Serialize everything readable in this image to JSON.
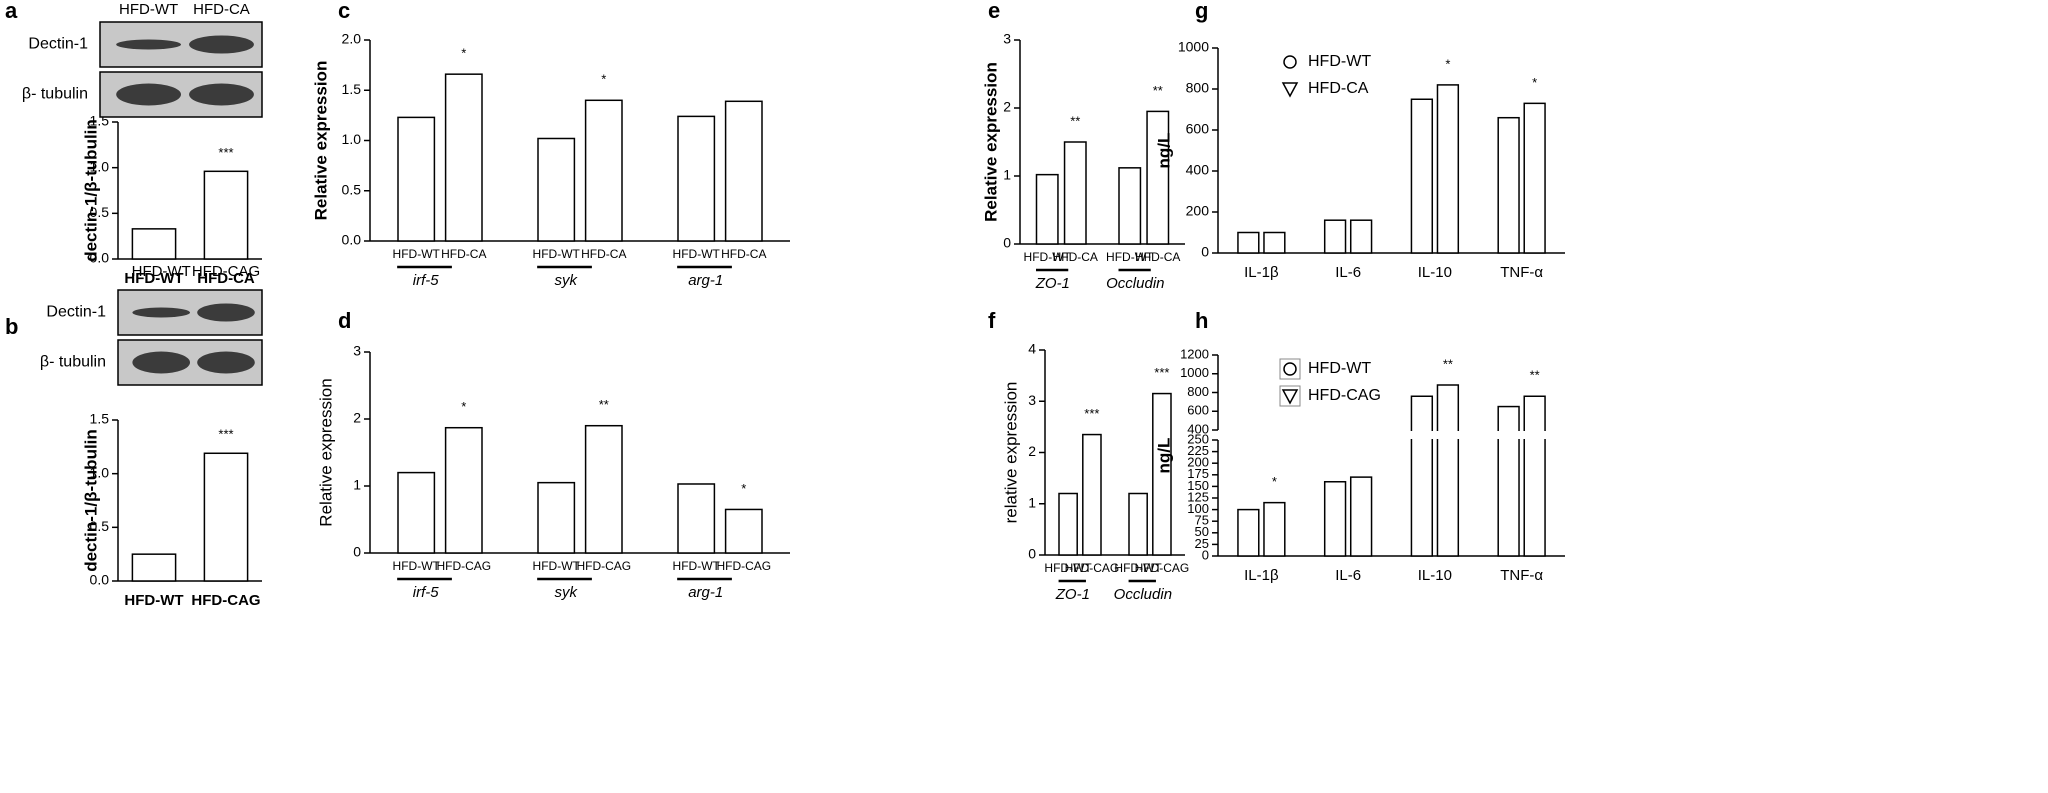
{
  "chart_data": [
    {
      "type": "bar",
      "label": "a",
      "ylabel": "dectin-1/β-tubulin",
      "blot": {
        "lanes": [
          "HFD-WT",
          "HFD-CA"
        ],
        "rows": [
          "Dectin-1",
          "β- tubulin"
        ]
      },
      "categories": [
        "HFD-WT",
        "HFD-CA"
      ],
      "values": [
        0.33,
        0.96
      ],
      "color": "#ffffff",
      "significance": [
        null,
        "***"
      ],
      "ylim": [
        0,
        1.5
      ],
      "yticks": [
        {
          "value": 0,
          "label": "0.0"
        },
        {
          "value": 0.5,
          "label": "0.5"
        },
        {
          "value": 1,
          "label": "1.0"
        },
        {
          "value": 1.5,
          "label": "1.5"
        }
      ]
    },
    {
      "type": "bar",
      "label": "b",
      "ylabel": "dectin-1/β-tubulin",
      "blot": {
        "lanes": [
          "HFD-WT",
          "HFD-CAG"
        ],
        "rows": [
          "Dectin-1",
          "β- tubulin"
        ]
      },
      "categories": [
        "HFD-WT",
        "HFD-CAG"
      ],
      "values": [
        0.25,
        1.19
      ],
      "color": "#ffffff",
      "significance": [
        null,
        "***"
      ],
      "ylim": [
        0,
        1.5
      ],
      "yticks": [
        {
          "value": 0,
          "label": "0.0"
        },
        {
          "value": 0.5,
          "label": "0.5"
        },
        {
          "value": 1,
          "label": "1.0"
        },
        {
          "value": 1.5,
          "label": "1.5"
        }
      ]
    },
    {
      "type": "grouped_bar",
      "label": "c",
      "ylabel": "Relative expression",
      "categories": [
        "irf-5",
        "syk",
        "arg-1"
      ],
      "series": [
        {
          "name": "HFD-WT",
          "color": "#ffffff",
          "values": [
            1.23,
            1.02,
            1.24
          ],
          "significance": [
            null,
            null,
            null
          ]
        },
        {
          "name": "HFD-CA",
          "color": "#ffffff",
          "values": [
            1.66,
            1.4,
            1.39
          ],
          "significance": [
            "*",
            "*",
            null
          ]
        }
      ],
      "ylim": [
        0,
        2
      ],
      "yticks": [
        {
          "value": 0,
          "label": "0.0"
        },
        {
          "value": 0.5,
          "label": "0.5"
        },
        {
          "value": 1,
          "label": "1.0"
        },
        {
          "value": 1.5,
          "label": "1.5"
        },
        {
          "value": 2,
          "label": "2.0"
        }
      ]
    },
    {
      "type": "grouped_bar",
      "label": "d",
      "ylabel": "Relative expression",
      "categories": [
        "irf-5",
        "syk",
        "arg-1"
      ],
      "series": [
        {
          "name": "HFD-WT",
          "color": "#ffffff",
          "values": [
            1.2,
            1.05,
            1.03
          ],
          "significance": [
            null,
            null,
            null
          ]
        },
        {
          "name": "HFD-CAG",
          "color": "#ffffff",
          "values": [
            1.87,
            1.9,
            0.65
          ],
          "significance": [
            "*",
            "**",
            "*"
          ]
        }
      ],
      "ylim": [
        0,
        3
      ],
      "yticks": [
        0,
        1,
        2,
        3
      ]
    },
    {
      "type": "grouped_bar",
      "label": "e",
      "ylabel": "Relative expression",
      "categories": [
        "ZO-1",
        "Occludin"
      ],
      "series": [
        {
          "name": "HFD-WT",
          "color": "#ffffff",
          "values": [
            1.02,
            1.12
          ],
          "significance": [
            null,
            null
          ]
        },
        {
          "name": "HFD-CA",
          "color": "#ffffff",
          "values": [
            1.5,
            1.95
          ],
          "significance": [
            "**",
            "**"
          ]
        }
      ],
      "ylim": [
        0,
        3
      ],
      "yticks": [
        0,
        1,
        2,
        3
      ]
    },
    {
      "type": "grouped_bar",
      "label": "f",
      "ylabel": "relative expression",
      "categories": [
        "ZO-1",
        "Occludin"
      ],
      "series": [
        {
          "name": "HFD-WT",
          "color": "#ffffff",
          "values": [
            1.2,
            1.2
          ],
          "significance": [
            null,
            null
          ]
        },
        {
          "name": "HFD-CAG",
          "color": "#ffffff",
          "values": [
            2.35,
            3.15
          ],
          "significance": [
            "***",
            "***"
          ]
        }
      ],
      "ylim": [
        0,
        4
      ],
      "yticks": [
        0,
        1,
        2,
        3,
        4
      ]
    },
    {
      "type": "grouped_bar",
      "label": "g",
      "ylabel": "ng/L",
      "legend": true,
      "categories": [
        "IL-1β",
        "IL-6",
        "IL-10",
        "TNF-α"
      ],
      "series": [
        {
          "name": "HFD-WT",
          "color": "#ffffff",
          "marker": "circle",
          "values": [
            100,
            160,
            750,
            660
          ],
          "significance": [
            null,
            null,
            null,
            null
          ]
        },
        {
          "name": "HFD-CA",
          "color": "#ffffff",
          "marker": "triangle",
          "values": [
            100,
            160,
            820,
            730
          ],
          "significance": [
            null,
            null,
            "*",
            "*"
          ]
        }
      ],
      "ylim": [
        0,
        1000
      ],
      "yticks": [
        0,
        200,
        400,
        600,
        800,
        1000
      ]
    },
    {
      "type": "grouped_bar",
      "label": "h",
      "ylabel": "ng/L",
      "legend": true,
      "legend_box": true,
      "categories": [
        "IL-1β",
        "IL-6",
        "IL-10",
        "TNF-α"
      ],
      "series": [
        {
          "name": "HFD-WT",
          "color": "#ffffff",
          "marker": "circle",
          "values": [
            100,
            160,
            760,
            650
          ],
          "significance": [
            null,
            null,
            null,
            null
          ]
        },
        {
          "name": "HFD-CAG",
          "color": "#ffffff",
          "marker": "triangle",
          "values": [
            115,
            170,
            880,
            760
          ],
          "significance": [
            "*",
            null,
            "**",
            "**"
          ]
        }
      ],
      "segments": [
        {
          "ylim": [
            0,
            250
          ],
          "yticks": [
            0,
            25,
            50,
            75,
            100,
            125,
            150,
            175,
            200,
            225,
            250
          ]
        },
        {
          "ylim": [
            400,
            1200
          ],
          "yticks": [
            400,
            600,
            800,
            1000,
            1200
          ]
        }
      ]
    }
  ]
}
